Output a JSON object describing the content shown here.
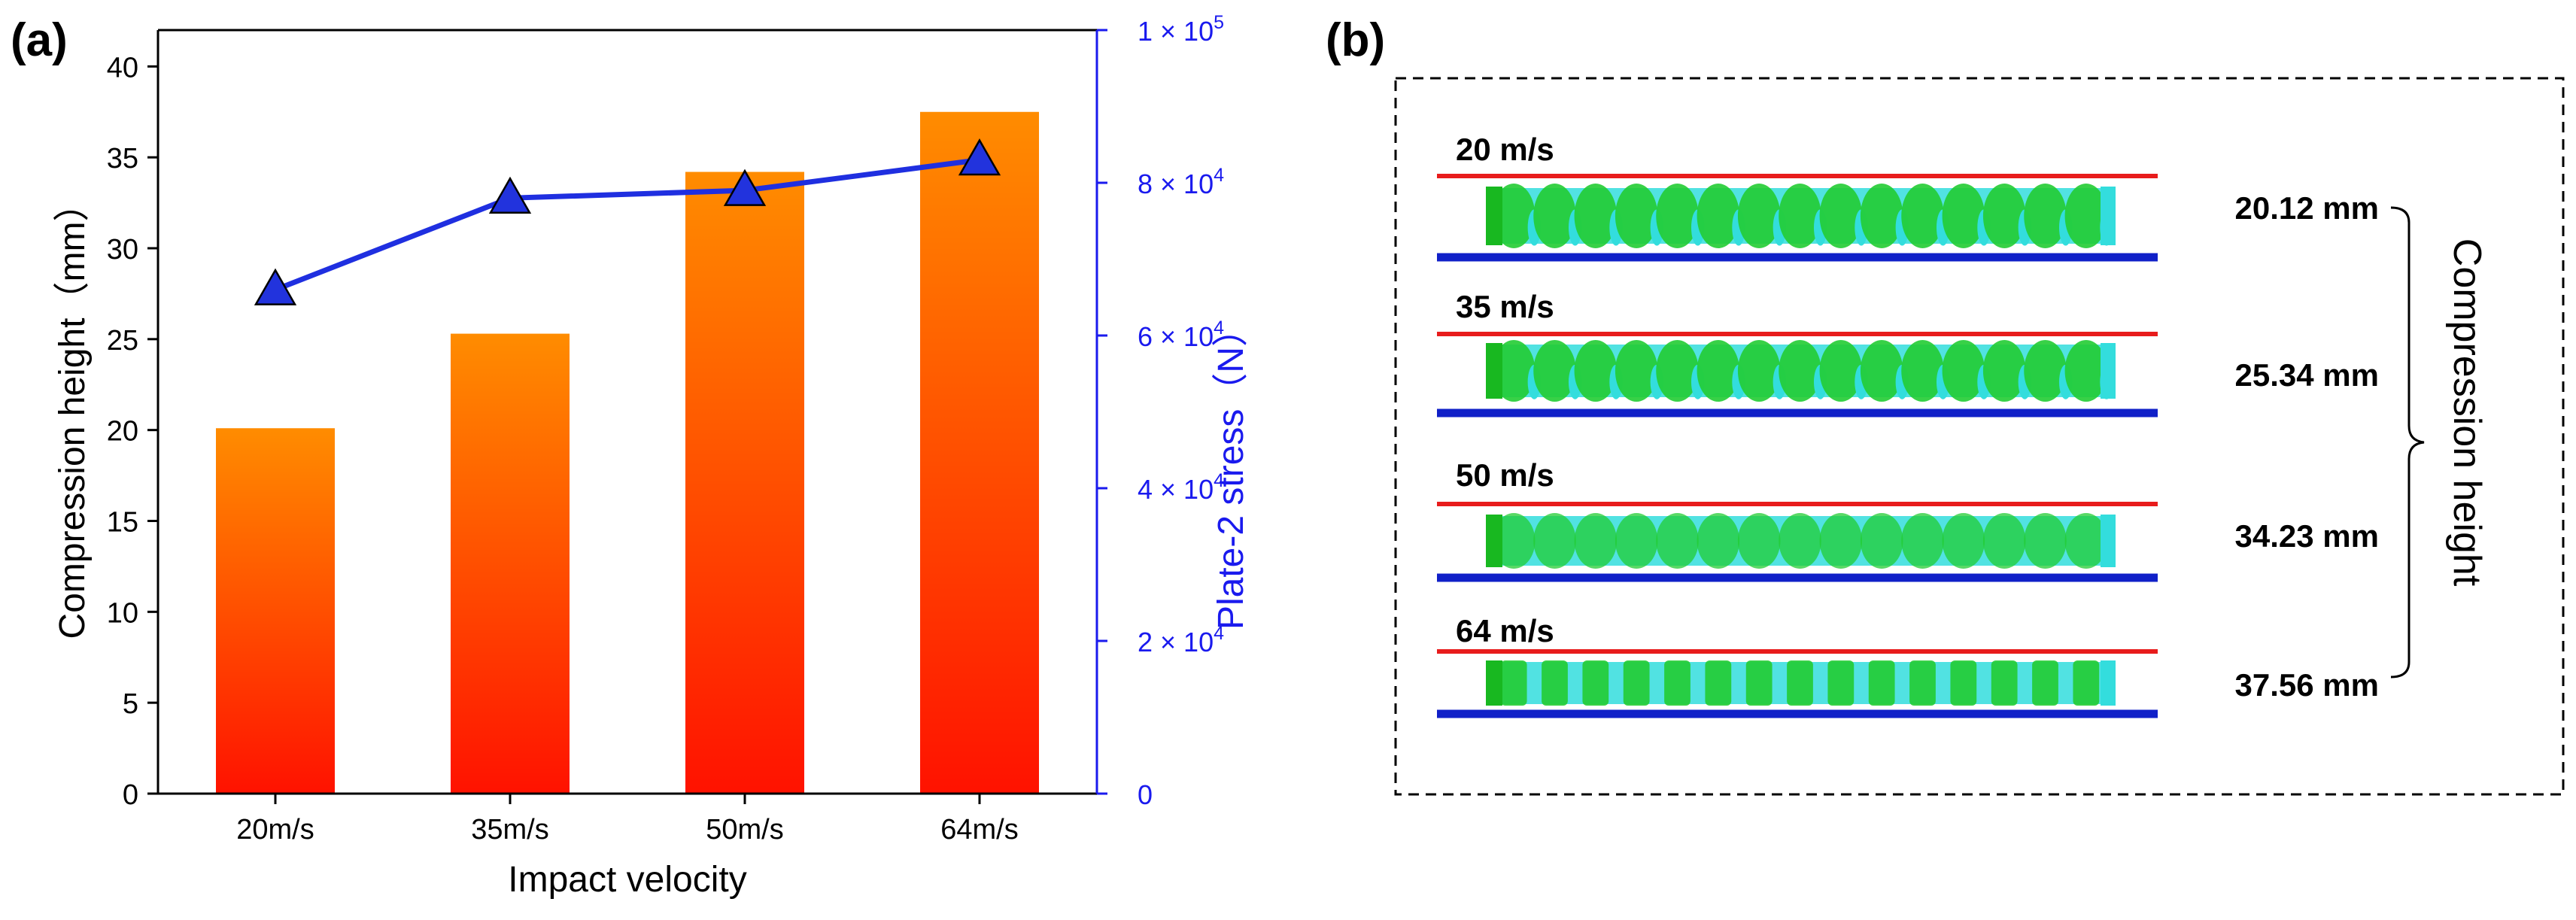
{
  "colors": {
    "bar_top": "#ff8c00",
    "bar_bottom": "#ff1200",
    "line": "#1f2fe0",
    "marker": "#2233dd",
    "right_axis": "#1a1aee",
    "top_plate": "#e81c1c",
    "bottom_plate": "#1020c8",
    "sphere_green": "#22cc33",
    "sphere_cyan": "#33dddd"
  },
  "panel_a": {
    "label": "(a)",
    "y2_label": "Plate-2 stress（N）"
  },
  "panel_b": {
    "label": "(b)",
    "bracket_label": "Compression height",
    "rows": [
      {
        "velocity": "20 m/s",
        "height": "20.12 mm"
      },
      {
        "velocity": "35 m/s",
        "height": "25.34 mm"
      },
      {
        "velocity": "50 m/s",
        "height": "34.23 mm"
      },
      {
        "velocity": "64 m/s",
        "height": "37.56 mm"
      }
    ]
  },
  "chart_data": {
    "type": "bar",
    "title": "",
    "xlabel": "Impact velocity",
    "ylabel": "Compression height（mm）",
    "categories": [
      "20m/s",
      "35m/s",
      "50m/s",
      "64m/s"
    ],
    "ylim": [
      0,
      42
    ],
    "yticks": [
      "0",
      "5",
      "10",
      "15",
      "20",
      "25",
      "30",
      "35",
      "40"
    ],
    "series": [
      {
        "name": "Compression height",
        "axis": "left",
        "kind": "bar",
        "values": [
          20.1,
          25.3,
          34.2,
          37.5
        ]
      },
      {
        "name": "Plate-2 stress",
        "axis": "right",
        "kind": "line-marker-triangle",
        "values": [
          66000,
          78000,
          79000,
          83000
        ]
      }
    ],
    "y2label": "Plate-2 stress（N）",
    "y2lim": [
      0,
      100000
    ],
    "y2ticks": [
      {
        "value": 0,
        "mant": "0",
        "exp": ""
      },
      {
        "value": 20000,
        "mant": "2 × 10",
        "exp": "4"
      },
      {
        "value": 40000,
        "mant": "4 × 10",
        "exp": "4"
      },
      {
        "value": 60000,
        "mant": "6 × 10",
        "exp": "4"
      },
      {
        "value": 80000,
        "mant": "8 × 10",
        "exp": "4"
      },
      {
        "value": 100000,
        "mant": "1 × 10",
        "exp": "5"
      }
    ]
  }
}
